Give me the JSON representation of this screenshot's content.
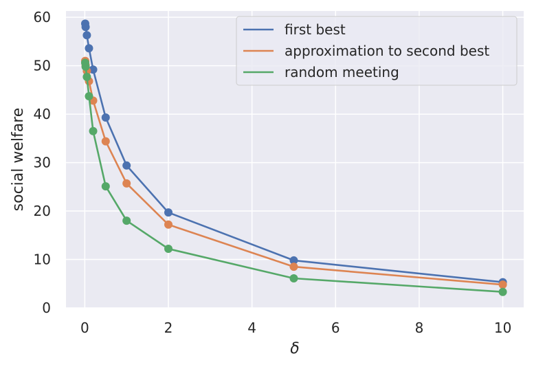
{
  "chart_data": {
    "type": "line",
    "xlabel": "δ",
    "ylabel": "social welfare",
    "xlim": [
      -0.45,
      10.5
    ],
    "ylim": [
      0,
      61.3
    ],
    "xticks": [
      0,
      2,
      4,
      6,
      8,
      10
    ],
    "yticks": [
      0,
      10,
      20,
      30,
      40,
      50,
      60
    ],
    "grid": true,
    "legend_position": "top-right",
    "x": [
      0.01,
      0.02,
      0.05,
      0.1,
      0.2,
      0.5,
      1,
      2,
      5,
      10
    ],
    "series": [
      {
        "name": "first best",
        "color": "#4c72b0",
        "values": [
          58.7,
          58.0,
          56.3,
          53.6,
          49.2,
          39.3,
          29.4,
          19.7,
          9.8,
          5.3
        ]
      },
      {
        "name": "approximation to second best",
        "color": "#dd8452",
        "values": [
          51.0,
          50.1,
          48.9,
          46.8,
          42.8,
          34.4,
          25.7,
          17.2,
          8.5,
          4.8
        ]
      },
      {
        "name": "random meeting",
        "color": "#55a868",
        "values": [
          50.6,
          49.8,
          47.7,
          43.7,
          36.5,
          25.1,
          18.0,
          12.2,
          6.1,
          3.3
        ]
      }
    ]
  }
}
